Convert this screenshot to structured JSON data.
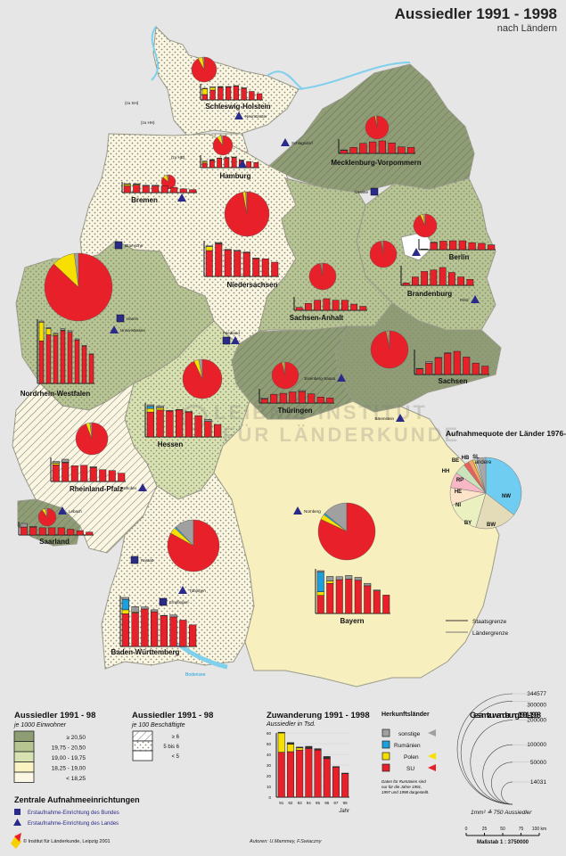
{
  "title": {
    "main": "Aussiedler 1991 - 1998",
    "sub": "nach Ländern"
  },
  "watermark": [
    "LEIBNIZ-INSTITUT",
    "FÜR LÄNDERKUNDE"
  ],
  "colors": {
    "su": "#e8202a",
    "polen": "#f7e000",
    "rumaenien": "#1ba0dc",
    "sonstige": "#a0a0a0",
    "bund": "#2a2a8a",
    "land": "#2a2a8a",
    "water": "#7fd0ec"
  },
  "years": [
    "91",
    "92",
    "93",
    "94",
    "95",
    "96",
    "97",
    "98"
  ],
  "states": [
    {
      "id": "SH",
      "name": "Schleswig-Holstein",
      "class": "< 18,25",
      "hatch": "5 bis 6",
      "total": 21000,
      "pie": [
        92,
        6,
        0,
        2
      ],
      "bars": [
        [
          1.2,
          1.3,
          0,
          0.1
        ],
        [
          2.2,
          0.6,
          0,
          0.1
        ],
        [
          2.8,
          0.1,
          0,
          0.1
        ],
        [
          2.9,
          0,
          0,
          0.1
        ],
        [
          3.1,
          0,
          0,
          0.1
        ],
        [
          2.6,
          0,
          0,
          0.1
        ],
        [
          1.9,
          0,
          0,
          0
        ],
        [
          1.4,
          0,
          0,
          0
        ]
      ]
    },
    {
      "id": "HH",
      "name": "Hamburg",
      "class": "< 18,25",
      "hatch": "5 bis 6",
      "total": 13000,
      "pie": [
        90,
        7,
        0,
        3
      ],
      "bars": [
        [
          0.9,
          0.3,
          0,
          0.1
        ],
        [
          1.4,
          0.1,
          0,
          0.1
        ],
        [
          1.8,
          0,
          0,
          0.1
        ],
        [
          1.9,
          0,
          0,
          0.1
        ],
        [
          2,
          0,
          0,
          0.1
        ],
        [
          1.4,
          0,
          0,
          0.1
        ],
        [
          1.2,
          0,
          0,
          0
        ],
        [
          1,
          0,
          0,
          0
        ]
      ]
    },
    {
      "id": "HB",
      "name": "Bremen",
      "class": "< 18,25",
      "hatch": "5 bis 6",
      "total": 7000,
      "pie": [
        86,
        10,
        0,
        4
      ],
      "bars": [
        [
          0.9,
          0.2,
          0,
          0.1
        ],
        [
          1,
          0.1,
          0,
          0.1
        ],
        [
          0.9,
          0,
          0,
          0.1
        ],
        [
          0.9,
          0,
          0,
          0.1
        ],
        [
          0.9,
          0,
          0,
          0
        ],
        [
          0.7,
          0,
          0,
          0
        ],
        [
          0.5,
          0,
          0,
          0
        ],
        [
          0.4,
          0,
          0,
          0
        ]
      ]
    },
    {
      "id": "NI",
      "name": "Niedersachsen",
      "class": "< 18,25",
      "hatch": "5 bis 6",
      "total": 90000,
      "pie": [
        97,
        2,
        0,
        1
      ],
      "bars": [
        [
          10,
          1.5,
          0,
          0.3
        ],
        [
          12.6,
          0.2,
          0,
          0.3
        ],
        [
          10.2,
          0,
          0,
          0.3
        ],
        [
          9.8,
          0,
          0,
          0.3
        ],
        [
          9.2,
          0,
          0,
          0.3
        ],
        [
          6.9,
          0,
          0,
          0.2
        ],
        [
          6.8,
          0,
          0,
          0
        ],
        [
          5.5,
          0,
          0,
          0
        ]
      ]
    },
    {
      "id": "NW",
      "name": "Nordrhein-Westfalen",
      "class": "19,75 - 20,50",
      "hatch": "5 bis 6",
      "total": 130000,
      "pie": [
        87,
        11,
        0,
        2
      ],
      "bars": [
        [
          10.5,
          4.6,
          0,
          0.3
        ],
        [
          12,
          1.5,
          0,
          0.3
        ],
        [
          11.8,
          0.3,
          0,
          0.3
        ],
        [
          13,
          0.1,
          0,
          0.4
        ],
        [
          12.6,
          0,
          0,
          0.4
        ],
        [
          10.7,
          0,
          0,
          0.3
        ],
        [
          9.2,
          0,
          0,
          0.2
        ],
        [
          7.2,
          0,
          0,
          0.1
        ]
      ]
    },
    {
      "id": "MV",
      "name": "Mecklenburg-Vorpommern",
      "class": "≥ 20,50",
      "hatch": "≥ 6",
      "total": 15000,
      "pie": [
        97,
        2,
        0,
        1
      ],
      "bars": [
        [
          0.6,
          0,
          0,
          0.1
        ],
        [
          1.2,
          0,
          0,
          0
        ],
        [
          2,
          0,
          0,
          0
        ],
        [
          2.3,
          0,
          0,
          0
        ],
        [
          2.5,
          0,
          0,
          0
        ],
        [
          2.1,
          0,
          0,
          0
        ],
        [
          1.3,
          0,
          0,
          0
        ],
        [
          1.2,
          0,
          0,
          0
        ]
      ]
    },
    {
      "id": "BE",
      "name": "Berlin",
      "class": "< 18,25",
      "hatch": "< 5",
      "total": 15000,
      "pie": [
        93,
        4,
        0,
        3
      ],
      "bars": [
        [
          0.1,
          0,
          0,
          0.1
        ],
        [
          1.9,
          0,
          0,
          0.1
        ],
        [
          2.3,
          0,
          0,
          0
        ],
        [
          2.4,
          0,
          0,
          0
        ],
        [
          2.4,
          0,
          0,
          0
        ],
        [
          1.9,
          0,
          0,
          0
        ],
        [
          1.7,
          0,
          0,
          0
        ],
        [
          1.3,
          0,
          0,
          0
        ]
      ]
    },
    {
      "id": "BB",
      "name": "Brandenburg",
      "class": "19,75 - 20,50",
      "hatch": "5 bis 6",
      "total": 22000,
      "pie": [
        97,
        1,
        0,
        2
      ],
      "bars": [
        [
          0.5,
          0,
          0,
          0
        ],
        [
          1.7,
          0,
          0,
          0
        ],
        [
          2.8,
          0,
          0,
          0
        ],
        [
          3.1,
          0,
          0,
          0
        ],
        [
          3.6,
          0,
          0,
          0
        ],
        [
          2.6,
          0,
          0,
          0
        ],
        [
          1.7,
          0,
          0,
          0
        ],
        [
          1.2,
          0,
          0,
          0
        ]
      ]
    },
    {
      "id": "ST",
      "name": "Sachsen-Anhalt",
      "class": "19,75 - 20,50",
      "hatch": "5 bis 6",
      "total": 25000,
      "pie": [
        97,
        1,
        0,
        2
      ],
      "bars": [
        [
          0.8,
          0,
          0,
          0
        ],
        [
          1.9,
          0,
          0,
          0
        ],
        [
          2.8,
          0,
          0,
          0
        ],
        [
          3.2,
          0,
          0,
          0
        ],
        [
          2.8,
          0,
          0,
          0
        ],
        [
          2.8,
          0,
          0,
          0
        ],
        [
          1.7,
          0,
          0,
          0
        ],
        [
          1.1,
          0,
          0,
          0
        ]
      ]
    },
    {
      "id": "SN",
      "name": "Sachsen",
      "class": "≥ 20,50",
      "hatch": "5 bis 6",
      "total": 40000,
      "pie": [
        97,
        1,
        0,
        2
      ],
      "bars": [
        [
          1.5,
          0,
          0,
          0.1
        ],
        [
          3,
          0,
          0,
          0.4
        ],
        [
          4.4,
          0,
          0,
          0.1
        ],
        [
          5.6,
          0,
          0,
          0.1
        ],
        [
          6.1,
          0,
          0,
          0
        ],
        [
          4.6,
          0,
          0,
          0
        ],
        [
          3,
          0,
          0,
          0
        ],
        [
          2.2,
          0,
          0,
          0
        ]
      ]
    },
    {
      "id": "TH",
      "name": "Thüringen",
      "class": "≥ 20,50",
      "hatch": "≥ 6",
      "total": 22000,
      "pie": [
        96,
        2,
        0,
        2
      ],
      "bars": [
        [
          0.9,
          0,
          0,
          0.2
        ],
        [
          1.9,
          0,
          0,
          0
        ],
        [
          2.1,
          0,
          0,
          0
        ],
        [
          2.4,
          0,
          0,
          0
        ],
        [
          2.5,
          0,
          0,
          0.2
        ],
        [
          2,
          0,
          0,
          0
        ],
        [
          1.3,
          0,
          0,
          0
        ],
        [
          1.1,
          0,
          0,
          0
        ]
      ]
    },
    {
      "id": "HE",
      "name": "Hessen",
      "class": "19,00 - 19,75",
      "hatch": "5 bis 6",
      "total": 45000,
      "pie": [
        93,
        4,
        0,
        3
      ],
      "bars": [
        [
          4.8,
          0.7,
          0.4,
          0.3
        ],
        [
          5.2,
          0.4,
          0,
          0.4
        ],
        [
          5,
          0,
          0,
          0.1
        ],
        [
          5.2,
          0,
          0,
          0.1
        ],
        [
          4.8,
          0,
          0,
          0.1
        ],
        [
          4.1,
          0,
          0,
          0
        ],
        [
          3,
          0,
          0,
          0.4
        ],
        [
          2.4,
          0,
          0,
          0
        ]
      ]
    },
    {
      "id": "RP",
      "name": "Rheinland-Pfalz",
      "class": "< 18,25",
      "hatch": "≥ 6",
      "total": 32000,
      "pie": [
        94,
        4,
        0,
        2
      ],
      "bars": [
        [
          3.8,
          0.4,
          0,
          0.4
        ],
        [
          4.3,
          0.1,
          0,
          0.7
        ],
        [
          3.6,
          0,
          0,
          0
        ],
        [
          3.7,
          0,
          0,
          0
        ],
        [
          3.2,
          0,
          0,
          0.2
        ],
        [
          2.7,
          0,
          0,
          0
        ],
        [
          2.5,
          0,
          0,
          0
        ],
        [
          1.9,
          0,
          0,
          0
        ]
      ]
    },
    {
      "id": "SL",
      "name": "Saarland",
      "class": "≥ 20,50",
      "hatch": "≥ 6",
      "total": 7000,
      "pie": [
        90,
        6,
        0,
        4
      ],
      "bars": [
        [
          1.1,
          0,
          0,
          0.5
        ],
        [
          1.1,
          0,
          0,
          0.1
        ],
        [
          1,
          0,
          0,
          0
        ],
        [
          1,
          0,
          0,
          0
        ],
        [
          1,
          0,
          0,
          0
        ],
        [
          0.8,
          0,
          0,
          0
        ],
        [
          0.6,
          0,
          0,
          0
        ],
        [
          0.4,
          0,
          0,
          0
        ]
      ]
    },
    {
      "id": "BW",
      "name": "Baden-Württemberg",
      "class": "< 18,25",
      "hatch": "5 bis 6",
      "total": 75000,
      "pie": [
        83,
        4,
        1,
        12
      ],
      "bars": [
        [
          8.2,
          1,
          2.6,
          0.5
        ],
        [
          8.4,
          0.2,
          0,
          1.4
        ],
        [
          9.4,
          0,
          0,
          0.5
        ],
        [
          8.7,
          0,
          0,
          0.5
        ],
        [
          7.7,
          0,
          0,
          0.1
        ],
        [
          7.4,
          0,
          0,
          0.5
        ],
        [
          6.6,
          0,
          0,
          0
        ],
        [
          5.4,
          0,
          0,
          0
        ]
      ]
    },
    {
      "id": "BY",
      "name": "Bayern",
      "class": "18,25 - 19,00",
      "hatch": "< 5",
      "total": 90000,
      "pie": [
        82,
        3,
        1,
        14
      ],
      "bars": [
        [
          6,
          1.2,
          6.5,
          0.5
        ],
        [
          10,
          0.8,
          0,
          1.5
        ],
        [
          11.2,
          0,
          0,
          1
        ],
        [
          11.4,
          0,
          0,
          1.2
        ],
        [
          11,
          0,
          0,
          1
        ],
        [
          9.2,
          0,
          0,
          0.8
        ],
        [
          7.5,
          0,
          0,
          0.3
        ],
        [
          6.1,
          0,
          0,
          0
        ]
      ]
    }
  ],
  "cities": [
    {
      "name": "Neumünster",
      "type": "land"
    },
    {
      "name": "Schlagsdorf",
      "type": "land"
    },
    {
      "name": "",
      "type": "land"
    },
    {
      "name": "",
      "type": "land"
    },
    {
      "name": "Oranke",
      "type": "bund"
    },
    {
      "name": "Bramsche",
      "type": "bund"
    },
    {
      "name": "Hamm",
      "type": "bund"
    },
    {
      "name": "Unna-Massen",
      "type": "land"
    },
    {
      "name": "Friedland",
      "type": "bund"
    },
    {
      "name": "",
      "type": "land"
    },
    {
      "name": "Peitz",
      "type": "land"
    },
    {
      "name": "",
      "type": "land"
    },
    {
      "name": "Eisenberg-Saasa",
      "type": "land"
    },
    {
      "name": "Bärenstein",
      "type": "land"
    },
    {
      "name": "Osthofen",
      "type": "land"
    },
    {
      "name": "Lebach",
      "type": "land"
    },
    {
      "name": "Nürnberg",
      "type": "land"
    },
    {
      "name": "Rastatt",
      "type": "bund"
    },
    {
      "name": "Tübingen",
      "type": "land"
    },
    {
      "name": "Empfingen",
      "type": "bund"
    }
  ],
  "map_notes": {
    "zu_sh": "(zu SH)",
    "zu_hh": "(zu HH)",
    "zu_hb": "(zu HB)",
    "bodensee": "Bodensee"
  },
  "legend_density": {
    "title": "Aussiedler 1991 - 98",
    "sub": "je 1000 Einwohner",
    "items": [
      "≥  20,50",
      "19,75  -  20,50",
      "19,00  -  19,75",
      "18,25  -  19,00",
      "<  18,25"
    ],
    "colors": [
      "#8f9d74",
      "#b6c592",
      "#d8e2b0",
      "#fbf2c2",
      "#fbf7e4"
    ]
  },
  "legend_workers": {
    "title": "Aussiedler 1991 - 98",
    "sub": "je 100 Beschäftigte",
    "items": [
      "≥ 6",
      "5 bis 6",
      "< 5"
    ]
  },
  "legend_centers": {
    "title": "Zentrale Aufnahmeeinrichtungen",
    "bund": "Erstaufnahme-Einrichtung des Bundes",
    "land": "Erstaufnahme-Einrichtung des Landes"
  },
  "copyright": "© Institut für Länderkunde, Leipzig 2001",
  "authors": "Autoren:  U.Mammey, F.Swiaczny",
  "chart_data": [
    {
      "type": "bar",
      "title": "Zuwanderung 1991 - 1998",
      "subtitle": "Aussiedler in Tsd.",
      "xlabel": "Jahr",
      "ylabel": "",
      "ylim": [
        0,
        60
      ],
      "yticks": [
        "0",
        "10",
        "20",
        "30",
        "40",
        "50",
        "60"
      ],
      "categories": [
        "91",
        "92",
        "93",
        "94",
        "95",
        "96",
        "97",
        "98"
      ],
      "series": [
        {
          "name": "SU",
          "values": [
            42,
            42.5,
            44,
            45.5,
            44,
            36,
            28,
            22
          ]
        },
        {
          "name": "Polen",
          "values": [
            18,
            7,
            2,
            0,
            0,
            0,
            0,
            0
          ]
        },
        {
          "name": "sonstige",
          "values": [
            0.7,
            1.5,
            0.8,
            2,
            1.3,
            2,
            0.6,
            0.5
          ]
        }
      ]
    },
    {
      "type": "pie",
      "title": "Aufnahmequote der Länder 1976-1991",
      "labels": [
        "NW",
        "BW",
        "BY",
        "NI",
        "HE",
        "RP",
        "HH",
        "BE",
        "HB",
        "SL",
        "andere"
      ],
      "values": [
        35.5,
        19,
        15,
        8,
        7,
        5,
        2.5,
        2,
        1,
        1,
        4
      ],
      "colors": [
        "#6fcdf2",
        "#e4dcb8",
        "#eaf0c0",
        "#fde3c8",
        "#f7b7c4",
        "#c9e4bc",
        "#e8605a",
        "#f7a56a",
        "#f4d24a",
        "#bfe0f2",
        "#a8a8a8"
      ]
    },
    {
      "type": "legend-circles",
      "title": "Gesamtzuwanderung 1991 - 1998",
      "values": [
        344577,
        300000,
        200000,
        100000,
        50000,
        14031
      ],
      "note": "1mm² ≙ 750 Aussiedler"
    }
  ],
  "herkunft": {
    "title": "Herkunftsländer",
    "items": [
      "sonstige",
      "Rumänien",
      "Polen",
      "SU"
    ],
    "note": "Daten für Rumänien sind nur für die Jahre 1991, 1997 und 1998 dargestellt."
  },
  "border_legend": {
    "staat": "Staatsgrenze",
    "land": "Ländergrenze"
  },
  "scale": {
    "ticks": [
      "0",
      "25",
      "50",
      "75",
      "100 km"
    ],
    "label": "Maßstab  1 : 3750000"
  }
}
